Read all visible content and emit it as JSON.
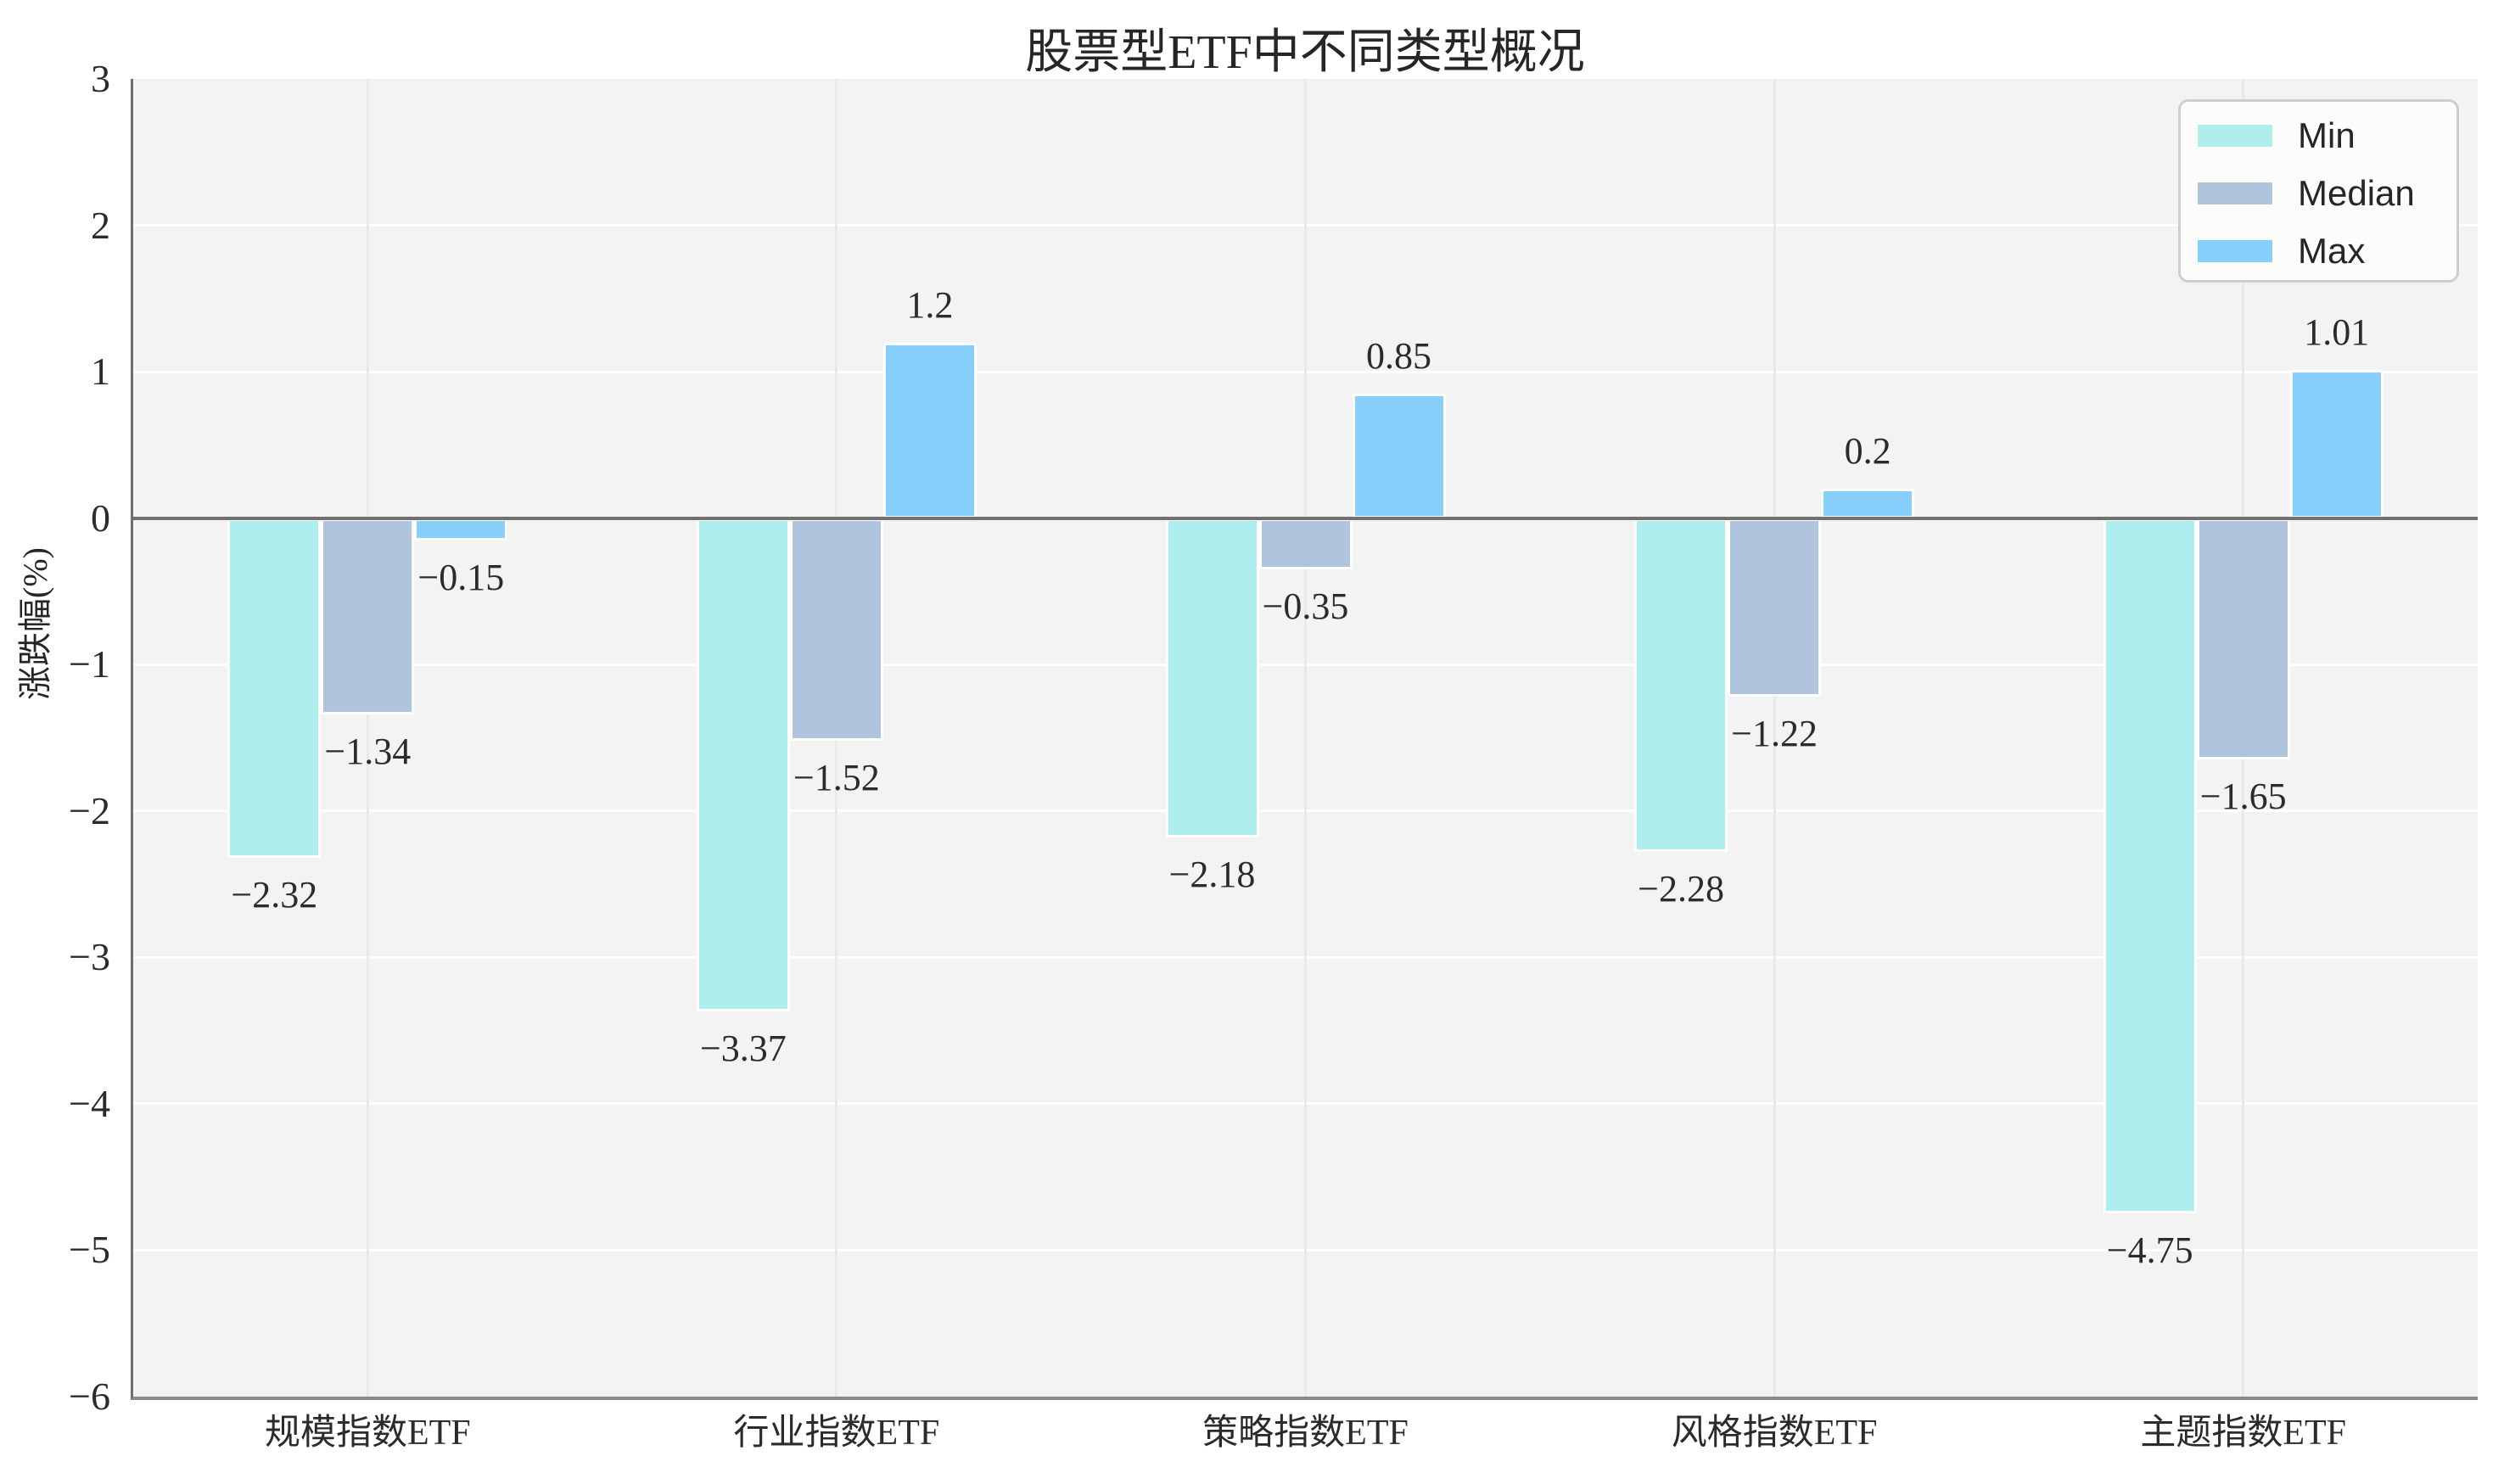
{
  "figure": {
    "title": "股票型ETF中不同类型概况",
    "y_axis_label": "涨跌幅(%)"
  },
  "legend": {
    "items": [
      {
        "label": "Min",
        "color": "#AFEEEE"
      },
      {
        "label": "Median",
        "color": "#B0C4DE"
      },
      {
        "label": "Max",
        "color": "#87CEFA"
      }
    ]
  },
  "chart_data": {
    "type": "bar",
    "title": "股票型ETF中不同类型概况",
    "xlabel": "",
    "ylabel": "涨跌幅(%)",
    "categories": [
      "规模指数ETF",
      "行业指数ETF",
      "策略指数ETF",
      "风格指数ETF",
      "主题指数ETF"
    ],
    "series": [
      {
        "name": "Min",
        "color": "#AFEEEE",
        "values": [
          -2.32,
          -3.37,
          -2.18,
          -2.28,
          -4.75
        ]
      },
      {
        "name": "Median",
        "color": "#B0C4DE",
        "values": [
          -1.34,
          -1.52,
          -0.35,
          -1.22,
          -1.65
        ]
      },
      {
        "name": "Max",
        "color": "#87CEFA",
        "values": [
          -0.15,
          1.2,
          0.85,
          0.2,
          1.01
        ]
      }
    ],
    "bar_value_labels": [
      [
        "-2.32",
        "-3.37",
        "-2.18",
        "-2.28",
        "-4.75"
      ],
      [
        "-1.34",
        "-1.52",
        "-0.35",
        "-1.22",
        "-1.65"
      ],
      [
        "-0.15",
        "1.2",
        "0.85",
        "0.2",
        "1.01"
      ]
    ],
    "ylim": [
      -6,
      3
    ],
    "yticks": [
      3,
      2,
      1,
      0,
      -1,
      -2,
      -3,
      -4,
      -5,
      -6
    ],
    "grid": true,
    "legend_position": "upper right"
  },
  "colors": {
    "plot_background": "#f3f3f3",
    "figure_background": "#ffffff",
    "horizontal_gridline": "#ffffff",
    "vertical_gridline": "#e9e9e9",
    "zero_line": "#707070",
    "left_spine": "#6f6f6f",
    "bottom_spine": "#8a8a8a",
    "text": "#2b2b2b"
  }
}
